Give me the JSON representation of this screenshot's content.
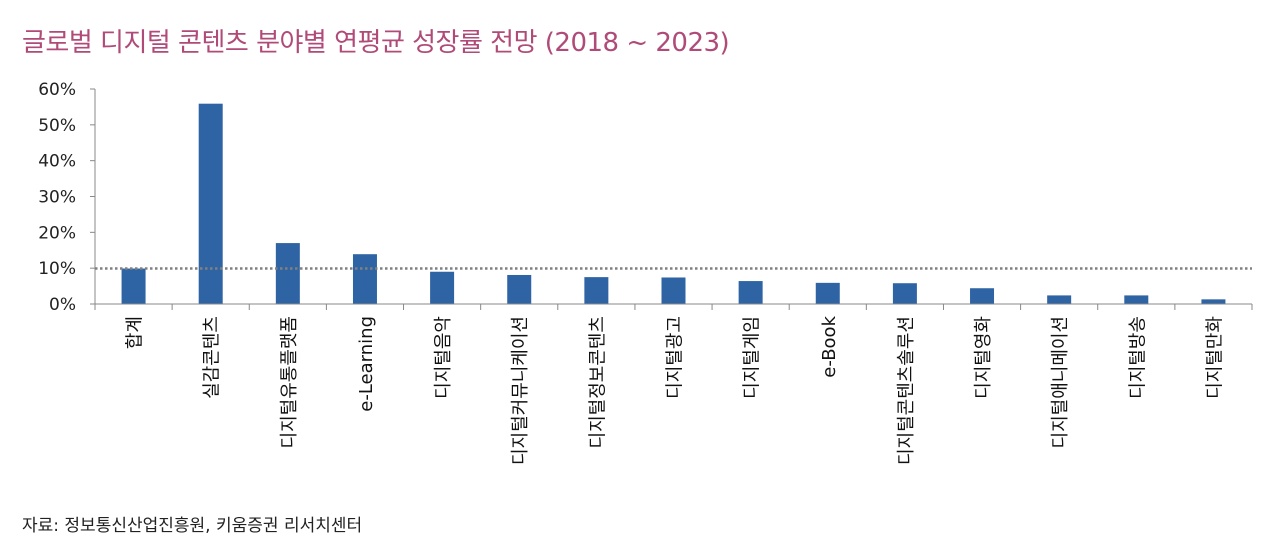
{
  "title": "글로벌 디지털 콘텐츠 분야별 연평균 성장률 전망 (2018 ~ 2023)",
  "source": "자료: 정보통신산업진흥원, 키움증권 리서치센터",
  "colors": {
    "bar": "#2e64a4",
    "reference_line": "#808080",
    "title": "#b04a78"
  },
  "chart_data": {
    "type": "bar",
    "categories": [
      "합계",
      "실감콘텐츠",
      "디지털유통플랫폼",
      "e-Learning",
      "디지털음악",
      "디지털커뮤니케이션",
      "디지털정보콘텐츠",
      "디지털광고",
      "디지털게임",
      "e-Book",
      "디지털콘텐츠솔루션",
      "디지털영화",
      "디지털애니메이션",
      "디지털방송",
      "디지털만화"
    ],
    "values": [
      9.9,
      55.9,
      17.0,
      13.9,
      9.0,
      8.1,
      7.5,
      7.4,
      6.4,
      5.9,
      5.8,
      4.4,
      2.4,
      2.4,
      1.3
    ],
    "reference_line": 9.9,
    "ylim": [
      0,
      60
    ],
    "yticks": [
      "0%",
      "10%",
      "20%",
      "30%",
      "40%",
      "50%",
      "60%"
    ],
    "ytick_values": [
      0,
      10,
      20,
      30,
      40,
      50,
      60
    ],
    "grid": false,
    "legend": "none"
  }
}
